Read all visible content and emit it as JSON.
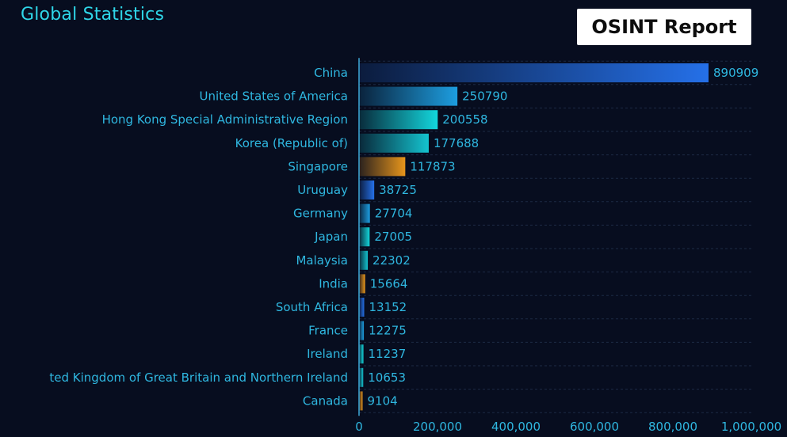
{
  "header": {
    "title": "Global Statistics",
    "badge": "OSINT Report"
  },
  "colors": {
    "background": "#070d1f",
    "accent_text": "#2fd6e8",
    "axis_text": "#2fb7e0",
    "grid": "#1c2a44",
    "palette": [
      "#2570e8",
      "#1d9ee0",
      "#13d7dd",
      "#14c3cf",
      "#e8961c"
    ]
  },
  "chart_data": {
    "type": "bar",
    "orientation": "horizontal",
    "categories": [
      "China",
      "United States of America",
      "Hong Kong Special Administrative Region",
      "Korea (Republic of)",
      "Singapore",
      "Uruguay",
      "Germany",
      "Japan",
      "Malaysia",
      "India",
      "South Africa",
      "France",
      "Ireland",
      "ted Kingdom of Great Britain and Northern Ireland",
      "Canada"
    ],
    "values": [
      890909,
      250790,
      200558,
      177688,
      117873,
      38725,
      27704,
      27005,
      22302,
      15664,
      13152,
      12275,
      11237,
      10653,
      9104
    ],
    "value_labels": [
      "890909",
      "250790",
      "200558",
      "177688",
      "117873",
      "38725",
      "27704",
      "27005",
      "22302",
      "15664",
      "13152",
      "12275",
      "11237",
      "10653",
      "9104"
    ],
    "bar_colors": [
      "#2570e8",
      "#1d9ee0",
      "#13d7dd",
      "#14c3cf",
      "#e8961c",
      "#2570e8",
      "#1d9ee0",
      "#13d7dd",
      "#14c3cf",
      "#e8961c",
      "#2570e8",
      "#1d9ee0",
      "#13d7dd",
      "#14c3cf",
      "#e8961c"
    ],
    "xlim": [
      0,
      1000000
    ],
    "x_ticks": [
      0,
      200000,
      400000,
      600000,
      800000,
      1000000
    ],
    "x_tick_labels": [
      "0",
      "200,000",
      "400,000",
      "600,000",
      "800,000",
      "1,000,000"
    ],
    "grid": "horizontal-dashed",
    "legend": "none"
  }
}
